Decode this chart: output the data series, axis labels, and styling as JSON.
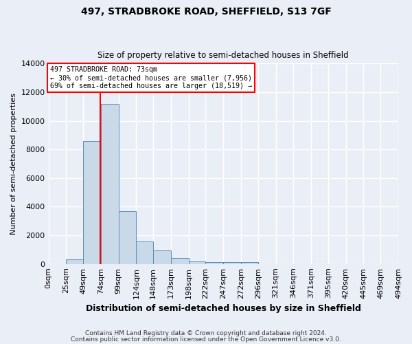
{
  "title": "497, STRADBROKE ROAD, SHEFFIELD, S13 7GF",
  "subtitle": "Size of property relative to semi-detached houses in Sheffield",
  "xlabel": "Distribution of semi-detached houses by size in Sheffield",
  "ylabel": "Number of semi-detached properties",
  "bar_color": "#c9d9e8",
  "bar_edge_color": "#5b8db8",
  "background_color": "#eaeff7",
  "grid_color": "white",
  "property_line_x": 73,
  "annotation_title": "497 STRADBROKE ROAD: 73sqm",
  "annotation_line1": "← 30% of semi-detached houses are smaller (7,956)",
  "annotation_line2": "69% of semi-detached houses are larger (18,519) →",
  "annotation_box_color": "white",
  "annotation_border_color": "red",
  "property_line_color": "red",
  "footnote1": "Contains HM Land Registry data © Crown copyright and database right 2024.",
  "footnote2": "Contains public sector information licensed under the Open Government Licence v3.0.",
  "bin_edges": [
    0,
    25,
    49,
    74,
    99,
    124,
    148,
    173,
    198,
    222,
    247,
    272,
    296,
    321,
    346,
    371,
    395,
    420,
    445,
    469,
    494
  ],
  "bar_heights": [
    0,
    300,
    8600,
    11200,
    3700,
    1550,
    950,
    400,
    200,
    120,
    130,
    120,
    0,
    0,
    0,
    0,
    0,
    0,
    0,
    0
  ],
  "ylim": [
    0,
    14000
  ],
  "yticks": [
    0,
    2000,
    4000,
    6000,
    8000,
    10000,
    12000,
    14000
  ],
  "xtick_labels": [
    "0sqm",
    "25sqm",
    "49sqm",
    "74sqm",
    "99sqm",
    "124sqm",
    "148sqm",
    "173sqm",
    "198sqm",
    "222sqm",
    "247sqm",
    "272sqm",
    "296sqm",
    "321sqm",
    "346sqm",
    "371sqm",
    "395sqm",
    "420sqm",
    "445sqm",
    "469sqm",
    "494sqm"
  ]
}
